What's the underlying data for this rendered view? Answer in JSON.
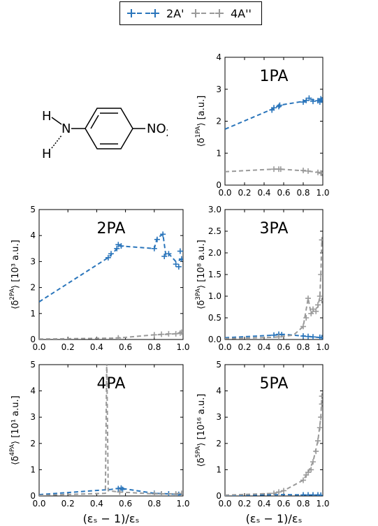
{
  "legend": {
    "items": [
      {
        "label": "2A'",
        "color": "#2a75bb"
      },
      {
        "label": "4A''",
        "color": "#9a9a9a"
      }
    ]
  },
  "molecule": {
    "atoms": [
      "H",
      "N",
      "H",
      "NO",
      "2"
    ]
  },
  "chart_data": [
    {
      "type": "line",
      "title": "1PA",
      "ylabel_base": "⟨δ",
      "ylabel_sup": "1PA",
      "ylabel_unit": "⟩ [a.u.]",
      "xlabel": "",
      "xlim": [
        0,
        1
      ],
      "ylim": [
        0,
        4
      ],
      "xticks": [
        "0.0",
        "0.2",
        "0.4",
        "0.6",
        "0.8",
        "1.0"
      ],
      "yticks": [
        "0",
        "1",
        "2",
        "3",
        "4"
      ],
      "series": [
        {
          "name": "2A'",
          "color": "#2a75bb",
          "line": [
            [
              0,
              1.75
            ],
            [
              0.5,
              2.4
            ],
            [
              0.56,
              2.5
            ],
            [
              0.8,
              2.62
            ],
            [
              0.86,
              2.68
            ],
            [
              0.95,
              2.65
            ],
            [
              1.0,
              2.7
            ]
          ],
          "markers": [
            [
              0.48,
              2.35
            ],
            [
              0.5,
              2.42
            ],
            [
              0.55,
              2.46
            ],
            [
              0.56,
              2.5
            ],
            [
              0.8,
              2.6
            ],
            [
              0.83,
              2.65
            ],
            [
              0.86,
              2.72
            ],
            [
              0.9,
              2.62
            ],
            [
              0.95,
              2.64
            ],
            [
              0.97,
              2.6
            ],
            [
              0.98,
              2.7
            ],
            [
              0.99,
              2.66
            ]
          ]
        },
        {
          "name": "4A''",
          "color": "#9a9a9a",
          "line": [
            [
              0,
              0.42
            ],
            [
              0.5,
              0.5
            ],
            [
              0.56,
              0.5
            ],
            [
              0.8,
              0.45
            ],
            [
              0.9,
              0.42
            ],
            [
              1.0,
              0.38
            ]
          ],
          "markers": [
            [
              0.5,
              0.5
            ],
            [
              0.55,
              0.5
            ],
            [
              0.57,
              0.5
            ],
            [
              0.8,
              0.46
            ],
            [
              0.85,
              0.44
            ],
            [
              0.95,
              0.4
            ],
            [
              0.98,
              0.38
            ],
            [
              0.99,
              0.37
            ]
          ]
        }
      ]
    },
    {
      "type": "line",
      "title": "2PA",
      "ylabel_base": "⟨δ",
      "ylabel_sup": "2PA",
      "ylabel_unit": "⟩ [10³ a.u.]",
      "xlabel": "",
      "xlim": [
        0,
        1
      ],
      "ylim": [
        0,
        5
      ],
      "xticks": [
        "0.0",
        "0.2",
        "0.4",
        "0.6",
        "0.8",
        "1.0"
      ],
      "yticks": [
        "0",
        "1",
        "2",
        "3",
        "4",
        "5"
      ],
      "series": [
        {
          "name": "2A'",
          "color": "#2a75bb",
          "line": [
            [
              0,
              1.45
            ],
            [
              0.48,
              3.15
            ],
            [
              0.56,
              3.6
            ],
            [
              0.8,
              3.5
            ],
            [
              0.82,
              3.9
            ],
            [
              0.86,
              4.05
            ],
            [
              0.88,
              3.25
            ],
            [
              0.9,
              3.3
            ],
            [
              0.95,
              3.0
            ],
            [
              1.0,
              3.1
            ]
          ],
          "markers": [
            [
              0.48,
              3.15
            ],
            [
              0.5,
              3.3
            ],
            [
              0.54,
              3.5
            ],
            [
              0.55,
              3.65
            ],
            [
              0.57,
              3.6
            ],
            [
              0.8,
              3.5
            ],
            [
              0.82,
              3.85
            ],
            [
              0.86,
              4.05
            ],
            [
              0.87,
              3.2
            ],
            [
              0.9,
              3.3
            ],
            [
              0.95,
              2.9
            ],
            [
              0.97,
              2.8
            ],
            [
              0.98,
              3.4
            ],
            [
              0.99,
              3.1
            ]
          ]
        },
        {
          "name": "4A''",
          "color": "#9a9a9a",
          "line": [
            [
              0,
              0.02
            ],
            [
              0.5,
              0.05
            ],
            [
              0.6,
              0.08
            ],
            [
              0.8,
              0.18
            ],
            [
              0.9,
              0.2
            ],
            [
              1.0,
              0.25
            ]
          ],
          "markers": [
            [
              0.55,
              0.06
            ],
            [
              0.8,
              0.18
            ],
            [
              0.85,
              0.2
            ],
            [
              0.9,
              0.22
            ],
            [
              0.95,
              0.22
            ],
            [
              0.98,
              0.25
            ],
            [
              0.99,
              0.28
            ]
          ]
        }
      ]
    },
    {
      "type": "line",
      "title": "3PA",
      "ylabel_base": "⟨δ",
      "ylabel_sup": "3PA",
      "ylabel_unit": "⟩ [10⁸ a.u.]",
      "xlabel": "",
      "xlim": [
        0,
        1
      ],
      "ylim": [
        0,
        3
      ],
      "xticks": [
        "0.0",
        "0.2",
        "0.4",
        "0.6",
        "0.8",
        "1.0"
      ],
      "yticks": [
        "0.0",
        "0.5",
        "1.0",
        "1.5",
        "2.0",
        "2.5",
        "3.0"
      ],
      "series": [
        {
          "name": "2A'",
          "color": "#2a75bb",
          "line": [
            [
              0,
              0.04
            ],
            [
              0.5,
              0.1
            ],
            [
              0.6,
              0.12
            ],
            [
              0.8,
              0.08
            ],
            [
              0.9,
              0.06
            ],
            [
              1.0,
              0.04
            ]
          ],
          "markers": [
            [
              0.5,
              0.1
            ],
            [
              0.55,
              0.12
            ],
            [
              0.58,
              0.11
            ],
            [
              0.8,
              0.08
            ],
            [
              0.85,
              0.07
            ],
            [
              0.9,
              0.06
            ],
            [
              0.97,
              0.05
            ],
            [
              0.99,
              0.04
            ]
          ]
        },
        {
          "name": "4A''",
          "color": "#9a9a9a",
          "line": [
            [
              0,
              0.02
            ],
            [
              0.5,
              0.05
            ],
            [
              0.7,
              0.1
            ],
            [
              0.8,
              0.3
            ],
            [
              0.85,
              0.95
            ],
            [
              0.88,
              0.6
            ],
            [
              0.92,
              0.7
            ],
            [
              0.95,
              0.75
            ],
            [
              0.97,
              1.0
            ],
            [
              0.98,
              1.5
            ],
            [
              0.99,
              2.3
            ]
          ],
          "markers": [
            [
              0.55,
              0.06
            ],
            [
              0.8,
              0.3
            ],
            [
              0.83,
              0.5
            ],
            [
              0.85,
              0.95
            ],
            [
              0.88,
              0.6
            ],
            [
              0.9,
              0.7
            ],
            [
              0.93,
              0.65
            ],
            [
              0.95,
              0.8
            ],
            [
              0.97,
              1.0
            ],
            [
              0.98,
              1.5
            ],
            [
              0.99,
              2.3
            ],
            [
              0.99,
              0.9
            ]
          ]
        }
      ]
    },
    {
      "type": "line",
      "title": "4PA",
      "ylabel_base": "⟨δ",
      "ylabel_sup": "4PA",
      "ylabel_unit": "⟩ [10¹ a.u.]",
      "xlabel": "(εₛ − 1)/εₛ",
      "xlim": [
        0,
        1
      ],
      "ylim": [
        0,
        5
      ],
      "xticks": [
        "0.0",
        "0.2",
        "0.4",
        "0.6",
        "0.8",
        "1.0"
      ],
      "yticks": [
        "0",
        "1",
        "2",
        "3",
        "4",
        "5"
      ],
      "series": [
        {
          "name": "2A'",
          "color": "#2a75bb",
          "line": [
            [
              0,
              0.05
            ],
            [
              0.5,
              0.25
            ],
            [
              0.56,
              0.3
            ],
            [
              0.8,
              0.1
            ],
            [
              0.9,
              0.08
            ],
            [
              1.0,
              0.05
            ]
          ],
          "markers": [
            [
              0.55,
              0.28
            ],
            [
              0.57,
              0.3
            ],
            [
              0.58,
              0.25
            ],
            [
              0.8,
              0.1
            ],
            [
              0.85,
              0.08
            ],
            [
              0.9,
              0.08
            ],
            [
              0.97,
              0.06
            ]
          ]
        },
        {
          "name": "4A''",
          "color": "#9a9a9a",
          "line": [
            [
              0,
              0.02
            ],
            [
              0.46,
              0.1
            ],
            [
              0.47,
              5.2
            ],
            [
              0.48,
              0.2
            ],
            [
              0.56,
              0.15
            ],
            [
              0.8,
              0.08
            ],
            [
              0.9,
              0.08
            ],
            [
              1.0,
              0.1
            ]
          ],
          "markers": [
            [
              0.56,
              0.15
            ],
            [
              0.8,
              0.08
            ],
            [
              0.85,
              0.08
            ],
            [
              0.95,
              0.08
            ],
            [
              0.99,
              0.1
            ]
          ]
        }
      ]
    },
    {
      "type": "line",
      "title": "5PA",
      "ylabel_base": "⟨δ",
      "ylabel_sup": "5PA",
      "ylabel_unit": "⟩ [10¹⁶ a.u.]",
      "xlabel": "(εₛ − 1)/εₛ",
      "xlim": [
        0,
        1
      ],
      "ylim": [
        0,
        5
      ],
      "xticks": [
        "0.0",
        "0.2",
        "0.4",
        "0.6",
        "0.8",
        "1.0"
      ],
      "yticks": [
        "0",
        "1",
        "2",
        "3",
        "4",
        "5"
      ],
      "series": [
        {
          "name": "2A'",
          "color": "#2a75bb",
          "line": [
            [
              0,
              0.02
            ],
            [
              0.6,
              0.05
            ],
            [
              0.8,
              0.04
            ],
            [
              0.9,
              0.04
            ],
            [
              1.0,
              0.03
            ]
          ],
          "markers": [
            [
              0.8,
              0.04
            ],
            [
              0.85,
              0.04
            ],
            [
              0.9,
              0.04
            ],
            [
              0.95,
              0.04
            ],
            [
              0.98,
              0.03
            ]
          ]
        },
        {
          "name": "4A''",
          "color": "#9a9a9a",
          "line": [
            [
              0,
              0.03
            ],
            [
              0.5,
              0.1
            ],
            [
              0.6,
              0.2
            ],
            [
              0.8,
              0.6
            ],
            [
              0.85,
              0.9
            ],
            [
              0.9,
              1.3
            ],
            [
              0.95,
              2.1
            ],
            [
              0.98,
              3.0
            ],
            [
              0.99,
              3.8
            ]
          ],
          "markers": [
            [
              0.5,
              0.1
            ],
            [
              0.55,
              0.15
            ],
            [
              0.6,
              0.2
            ],
            [
              0.8,
              0.6
            ],
            [
              0.83,
              0.8
            ],
            [
              0.85,
              0.9
            ],
            [
              0.88,
              1.0
            ],
            [
              0.9,
              1.3
            ],
            [
              0.93,
              1.7
            ],
            [
              0.95,
              2.1
            ],
            [
              0.97,
              2.6
            ],
            [
              0.98,
              3.0
            ],
            [
              0.99,
              3.8
            ],
            [
              0.99,
              3.5
            ]
          ]
        }
      ]
    }
  ]
}
